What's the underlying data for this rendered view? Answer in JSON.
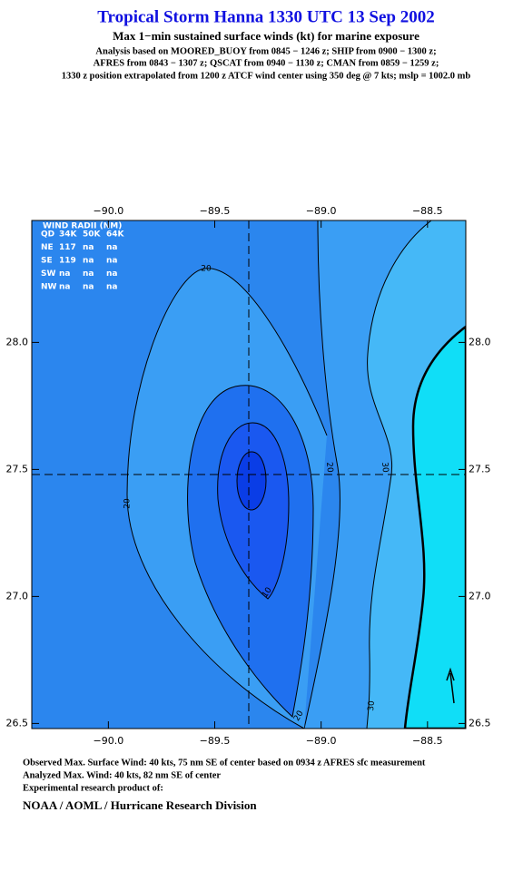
{
  "chart_data": {
    "type": "contour",
    "title": "Tropical Storm Hanna 1330 UTC 13 Sep 2002",
    "subtitle": "Max 1−min sustained surface winds (kt) for marine exposure",
    "notes": [
      "Analysis based on  MOORED_BUOY from 0845 − 1246 z;  SHIP from 0900 − 1300 z;",
      "AFRES from 0843 − 1307 z;  QSCAT from 0940 − 1130 z;  CMAN from 0859 − 1259 z;",
      "1330 z position extrapolated from 1200 z ATCF wind center using 350 deg @ 7 kts; mslp = 1002.0 mb"
    ],
    "xlim": [
      -90.36,
      -88.32
    ],
    "ylim": [
      26.48,
      28.48
    ],
    "xticks": [
      {
        "value": -90,
        "label": "−90.0"
      },
      {
        "value": -89.5,
        "label": "−89.5"
      },
      {
        "value": -89,
        "label": "−89.0"
      },
      {
        "value": -88.5,
        "label": "−88.5"
      }
    ],
    "yticks": [
      26.5,
      {
        "value": 27,
        "label": "27.0"
      },
      27.5,
      {
        "value": 28,
        "label": "28.0"
      }
    ],
    "center": {
      "lon": -89.34,
      "lat": 27.48
    },
    "contour_labels": [
      20,
      20,
      20,
      10,
      20,
      30,
      30
    ],
    "wind_radii": {
      "title": "WIND RADII (NM)",
      "rows": [
        [
          "QD",
          "34K",
          "50K",
          "64K"
        ],
        [
          "NE",
          "117",
          "na",
          "na"
        ],
        [
          "SE",
          "119",
          "na",
          "na"
        ],
        [
          "SW",
          "na",
          "na",
          "na"
        ],
        [
          "NW",
          "na",
          "na",
          "na"
        ]
      ]
    },
    "footer": [
      "Observed Max. Surface Wind: 40 kts, 75 nm SE of center based on 0934 z AFRES sfc measurement",
      "Analyzed Max. Wind: 40 kts, 82 nm SE of center",
      "Experimental research product of:",
      "NOAA / AOML / Hurricane Research Division"
    ]
  }
}
